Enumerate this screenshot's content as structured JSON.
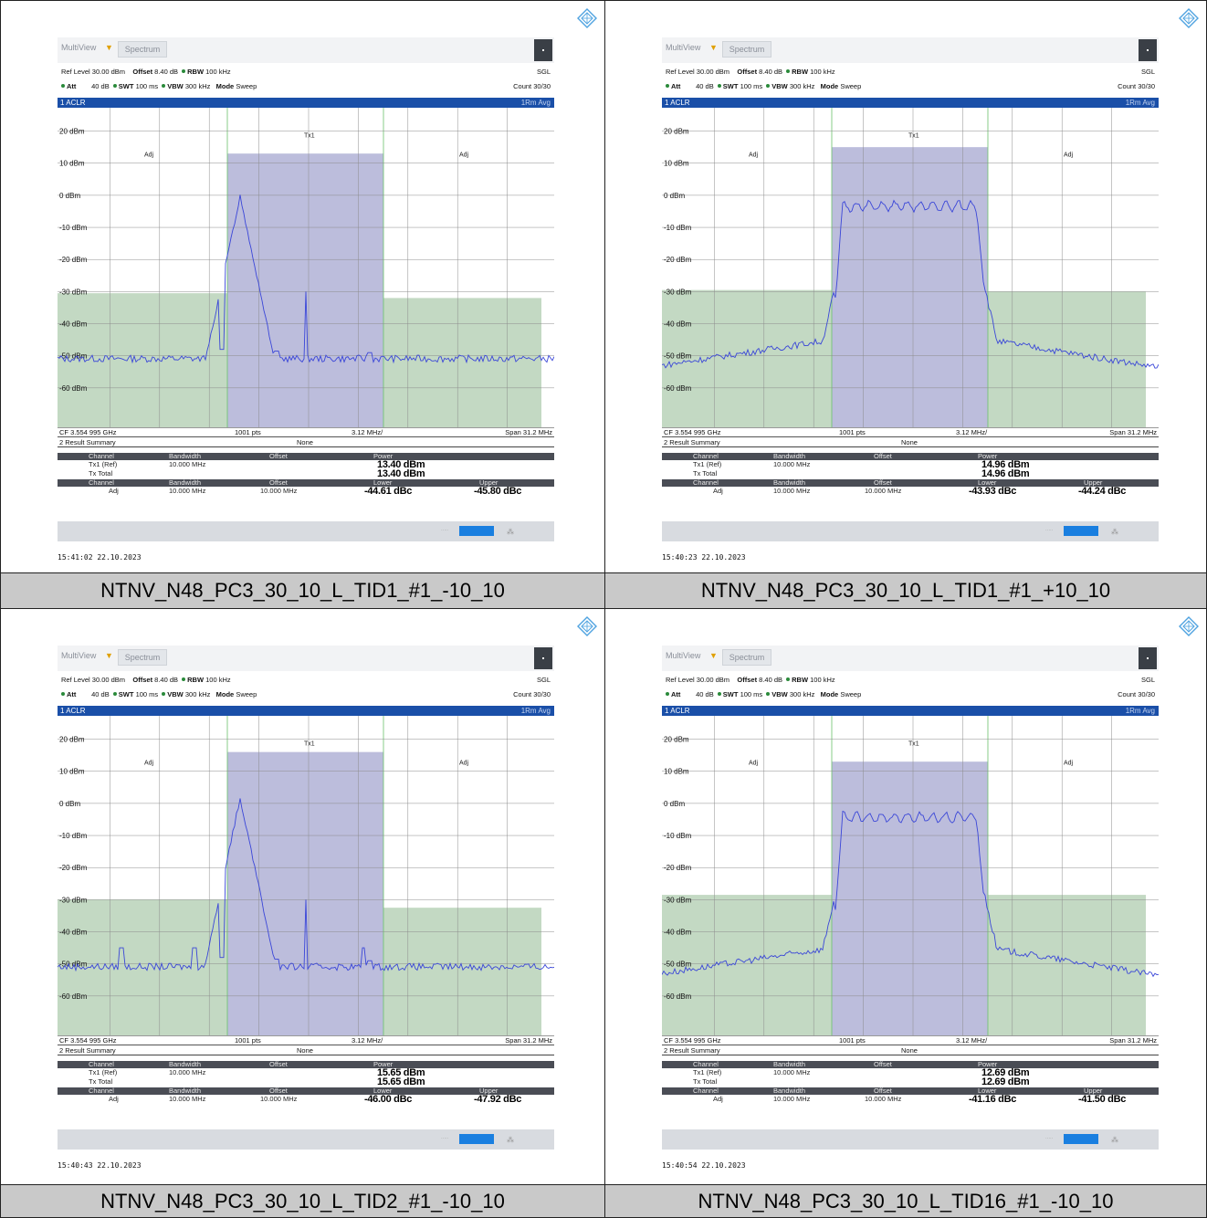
{
  "captions": [
    "NTNV_N48_PC3_30_10_L_TID1_#1_-10_10",
    "NTNV_N48_PC3_30_10_L_TID1_#1_+10_10",
    "NTNV_N48_PC3_30_10_L_TID2_#1_-10_10",
    "NTNV_N48_PC3_30_10_L_TID16_#1_-10_10"
  ],
  "common": {
    "tab1": "MultiView",
    "tab2": "Spectrum",
    "ref_level_label": "Ref Level",
    "ref_level": "30.00 dBm",
    "offset_label": "Offset",
    "offset": "8.40 dB",
    "rbw_label": "RBW",
    "rbw": "100 kHz",
    "sgl": "SGL",
    "att_label": "Att",
    "att": "40 dB",
    "swt_label": "SWT",
    "swt": "100 ms",
    "vbw_label": "VBW",
    "vbw": "300 kHz",
    "mode_label": "Mode",
    "mode": "Sweep",
    "count": "Count 30/30",
    "window_title": "1 ACLR",
    "trace_mode": "1Rm Avg",
    "y_labels": [
      "20 dBm",
      "10 dBm",
      "0 dBm",
      "-10 dBm",
      "-20 dBm",
      "-30 dBm",
      "-40 dBm",
      "-50 dBm",
      "-60 dBm"
    ],
    "adj_label": "Adj",
    "tx_label": "Tx1",
    "cf": "CF 3.554 995 GHz",
    "pts": "1001 pts",
    "div": "3.12 MHz/",
    "span": "Span 31.2 MHz",
    "result_title": "2 Result Summary",
    "result_none": "None",
    "col_channel": "Channel",
    "col_bandwidth": "Bandwidth",
    "col_offset": "Offset",
    "col_power": "Power",
    "col_lower": "Lower",
    "col_upper": "Upper",
    "tx_ref": "Tx1 (Ref)",
    "tx_total": "Tx Total",
    "adj": "Adj",
    "bw": "10.000 MHz",
    "off": "10.000 MHz"
  },
  "screens": [
    {
      "power": "13.40 dBm",
      "total": "13.40 dBm",
      "lower": "-44.61 dBc",
      "upper": "-45.80 dBc",
      "timestamp": "15:41:02  22.10.2023"
    },
    {
      "power": "14.96 dBm",
      "total": "14.96 dBm",
      "lower": "-43.93 dBc",
      "upper": "-44.24 dBc",
      "timestamp": "15:40:23  22.10.2023"
    },
    {
      "power": "15.65 dBm",
      "total": "15.65 dBm",
      "lower": "-46.00 dBc",
      "upper": "-47.92 dBc",
      "timestamp": "15:40:43  22.10.2023"
    },
    {
      "power": "12.69 dBm",
      "total": "12.69 dBm",
      "lower": "-41.16 dBc",
      "upper": "-41.50 dBc",
      "timestamp": "15:40:54  22.10.2023"
    }
  ]
}
